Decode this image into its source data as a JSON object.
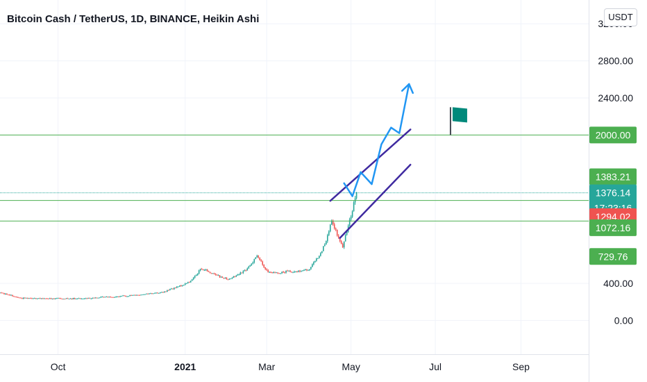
{
  "header": {
    "title": "Bitcoin Cash / TetherUS, 1D, BINANCE, Heikin Ashi",
    "currency_button": "USDT"
  },
  "colors": {
    "up": "#26a69a",
    "down": "#ef5350",
    "levels": "#4caf50",
    "channel": "#3f2aa0",
    "projection": "#2196f3",
    "flag": "#00897b",
    "last_price_tag": "#26a69a",
    "grid": "#f0f3fa"
  },
  "chart_data": {
    "type": "candlestick",
    "style": "Heikin Ashi",
    "x_range": [
      "2020-08-20",
      "2021-10-20"
    ],
    "ylim": [
      -400,
      3300
    ],
    "y_ticks": [
      "0.00",
      "400.00",
      "2000.00",
      "2400.00",
      "2800.00",
      "3200.00"
    ],
    "x_ticks": [
      {
        "label": "Oct",
        "date": "2020-10-01",
        "bold": false
      },
      {
        "label": "2021",
        "date": "2021-01-01",
        "bold": true
      },
      {
        "label": "Mar",
        "date": "2021-03-01",
        "bold": false
      },
      {
        "label": "May",
        "date": "2021-05-01",
        "bold": false
      },
      {
        "label": "Jul",
        "date": "2021-07-01",
        "bold": false
      },
      {
        "label": "Sep",
        "date": "2021-09-01",
        "bold": false
      }
    ],
    "price_segments": [
      {
        "date": "2020-08-20",
        "price": 300
      },
      {
        "date": "2020-09-05",
        "price": 240
      },
      {
        "date": "2020-10-15",
        "price": 235
      },
      {
        "date": "2020-11-15",
        "price": 260
      },
      {
        "date": "2020-12-15",
        "price": 300
      },
      {
        "date": "2021-01-05",
        "price": 420
      },
      {
        "date": "2021-01-12",
        "price": 560
      },
      {
        "date": "2021-02-01",
        "price": 440
      },
      {
        "date": "2021-02-15",
        "price": 560
      },
      {
        "date": "2021-02-22",
        "price": 700
      },
      {
        "date": "2021-03-02",
        "price": 520
      },
      {
        "date": "2021-03-10",
        "price": 520
      },
      {
        "date": "2021-03-31",
        "price": 540
      },
      {
        "date": "2021-04-10",
        "price": 750
      },
      {
        "date": "2021-04-17",
        "price": 1050
      },
      {
        "date": "2021-04-25",
        "price": 800
      },
      {
        "date": "2021-05-05",
        "price": 1380
      }
    ],
    "levels": [
      {
        "price": 2000,
        "label": "2000.00",
        "style": "solid"
      },
      {
        "price": 1383.21,
        "label": "1383.21",
        "style": "none"
      },
      {
        "price": 1376.14,
        "label": "1376.14",
        "style": "dotted"
      },
      {
        "price": 1294.02,
        "label": "1294.02",
        "style": "solid"
      },
      {
        "price": 1072.16,
        "label": "1072.16",
        "style": "solid"
      },
      {
        "price": 729.76,
        "label": "729.76",
        "style": "none"
      }
    ],
    "price_tags": [
      {
        "label": "2000.00",
        "price": 2000,
        "color": "#4caf50"
      },
      {
        "label": "1383.21",
        "price": 1550,
        "color": "#4caf50"
      },
      {
        "label": "1376.14",
        "price": 1376.14,
        "color": "#26a69a",
        "sublabel": "17:23:16"
      },
      {
        "label": "1294.02",
        "price": 1120,
        "color": "#ef5350"
      },
      {
        "label": "1072.16",
        "price": 1000,
        "color": "#4caf50"
      },
      {
        "label": "729.76",
        "price": 690,
        "color": "#4caf50"
      }
    ],
    "last_price": 1376.14,
    "countdown": "17:23:16",
    "drawings": {
      "channel_upper": [
        {
          "date": "2021-04-16",
          "price": 1290
        },
        {
          "date": "2021-06-13",
          "price": 2060
        }
      ],
      "channel_lower": [
        {
          "date": "2021-04-23",
          "price": 890
        },
        {
          "date": "2021-06-13",
          "price": 1680
        }
      ],
      "projection": [
        {
          "date": "2021-04-26",
          "price": 1480
        },
        {
          "date": "2021-05-02",
          "price": 1340
        },
        {
          "date": "2021-05-08",
          "price": 1600
        },
        {
          "date": "2021-05-16",
          "price": 1470
        },
        {
          "date": "2021-05-23",
          "price": 1900
        },
        {
          "date": "2021-05-30",
          "price": 2080
        },
        {
          "date": "2021-06-05",
          "price": 2020
        },
        {
          "date": "2021-06-12",
          "price": 2550
        }
      ],
      "flag": {
        "date": "2021-07-12",
        "price_bottom": 2000,
        "price_top": 2300
      }
    }
  }
}
